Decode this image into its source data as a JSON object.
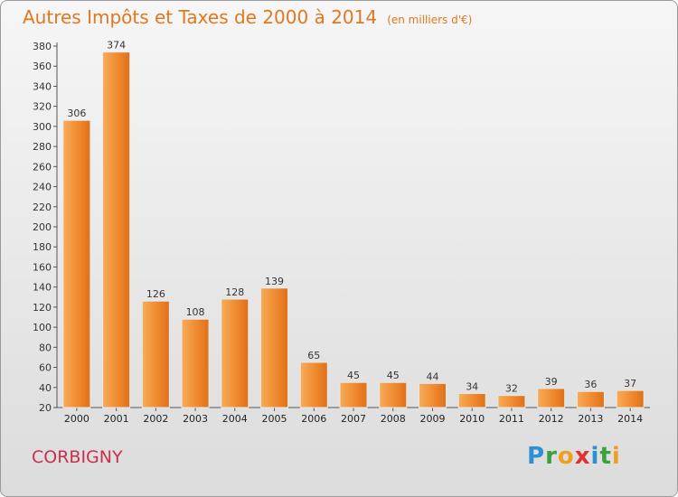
{
  "header": {
    "title": "Autres Impôts et Taxes de 2000 à 2014",
    "unit": "(en milliers d'€)"
  },
  "commune": "CORBIGNY",
  "logo": {
    "letters": [
      "P",
      "r",
      "o",
      "x",
      "i",
      "t",
      "i"
    ],
    "colors": [
      "#2d8fd5",
      "#3ca03c",
      "#f0a020",
      "#e03030",
      "#2d8fd5",
      "#3ca03c",
      "#f0a020"
    ]
  },
  "colors": {
    "bar": "#f08a30",
    "bar_light": "#f7ac58",
    "bar_dark": "#de7018",
    "title": "#e07820",
    "commune": "#c8304c"
  },
  "chart_data": {
    "type": "bar",
    "title": "Autres Impôts et Taxes de 2000 à 2014",
    "subtitle": "(en milliers d'€)",
    "xlabel": "",
    "ylabel": "",
    "categories": [
      "2000",
      "2001",
      "2002",
      "2003",
      "2004",
      "2005",
      "2006",
      "2007",
      "2008",
      "2009",
      "2010",
      "2011",
      "2012",
      "2013",
      "2014"
    ],
    "values": [
      306,
      374,
      126,
      108,
      128,
      139,
      65,
      45,
      45,
      44,
      34,
      32,
      39,
      36,
      37
    ],
    "ylim": [
      20,
      380
    ],
    "yticks": [
      20,
      40,
      60,
      80,
      100,
      120,
      140,
      160,
      180,
      200,
      220,
      240,
      260,
      280,
      300,
      320,
      340,
      360,
      380
    ],
    "grid": false,
    "legend": "none"
  }
}
